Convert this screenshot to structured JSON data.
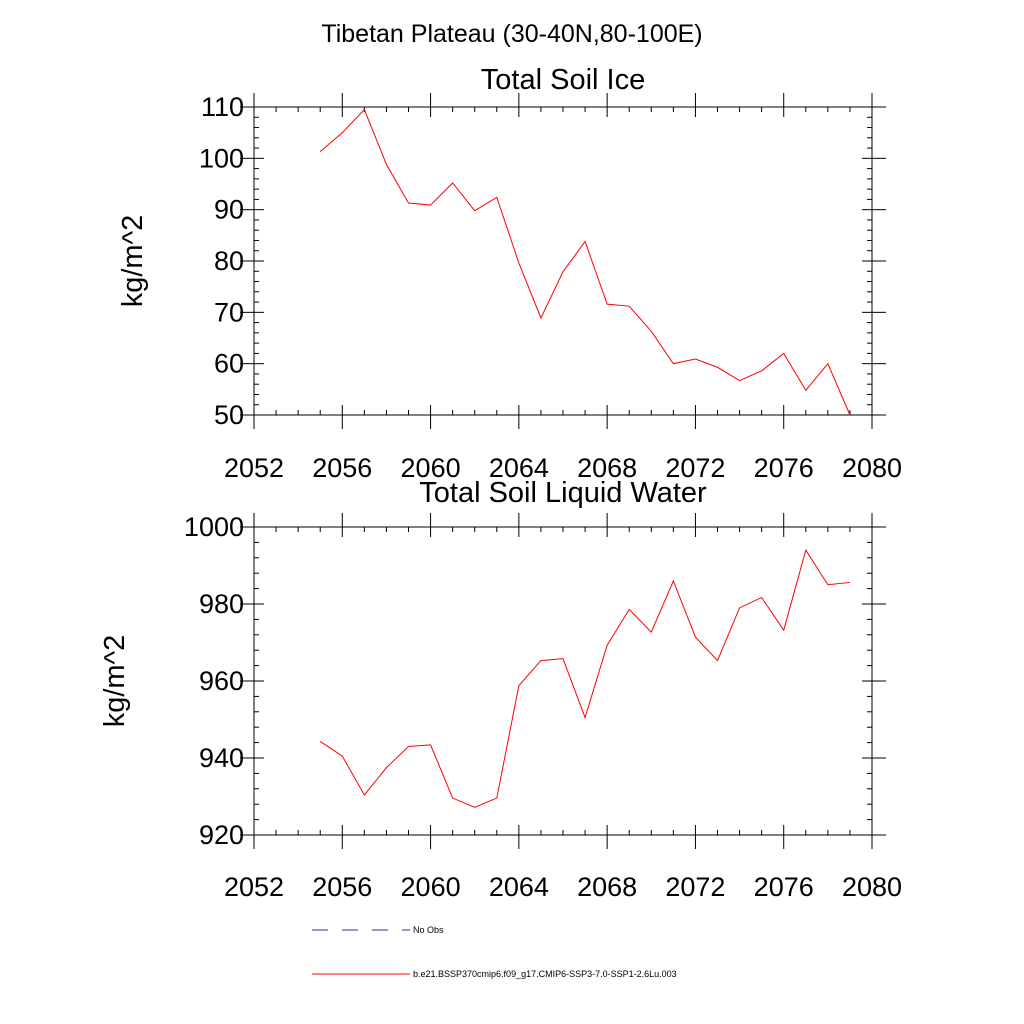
{
  "suptitle": "Tibetan Plateau (30-40N,80-100E)",
  "colors": {
    "series": "#ff0000",
    "no_obs": "#2b2bb0",
    "axis": "#000000"
  },
  "legend": {
    "no_obs_label": "No Obs",
    "series_label": "b.e21.BSSP370cmip6.f09_g17.CMIP6-SSP3-7.0-SSP1-2.6Lu.003"
  },
  "chart_data": [
    {
      "type": "line",
      "title": "Total Soil Ice",
      "xlabel": "",
      "ylabel": "kg/m^2",
      "xlim": [
        2052,
        2080
      ],
      "ylim": [
        50,
        110
      ],
      "xticks": [
        2052,
        2056,
        2060,
        2064,
        2068,
        2072,
        2076,
        2080
      ],
      "yticks": [
        50,
        60,
        70,
        80,
        90,
        100,
        110
      ],
      "grid": false,
      "series": [
        {
          "x": [
            2055,
            2056,
            2057,
            2058,
            2059,
            2060,
            2061,
            2062,
            2063,
            2064,
            2065,
            2066,
            2067,
            2068,
            2069,
            2070,
            2071,
            2072,
            2073,
            2074,
            2075,
            2076,
            2077,
            2078,
            2079
          ],
          "values": [
            101.3,
            105.0,
            109.5,
            98.8,
            91.3,
            90.9,
            95.2,
            89.8,
            92.4,
            79.6,
            68.9,
            77.9,
            83.8,
            71.6,
            71.2,
            66.3,
            60.0,
            60.9,
            59.3,
            56.7,
            58.6,
            62.0,
            54.8,
            60.0,
            50.0
          ]
        }
      ]
    },
    {
      "type": "line",
      "title": "Total Soil Liquid Water",
      "xlabel": "",
      "ylabel": "kg/m^2",
      "xlim": [
        2052,
        2080
      ],
      "ylim": [
        920,
        1000
      ],
      "xticks": [
        2052,
        2056,
        2060,
        2064,
        2068,
        2072,
        2076,
        2080
      ],
      "yticks": [
        920,
        940,
        960,
        980,
        1000
      ],
      "grid": false,
      "series": [
        {
          "x": [
            2055,
            2056,
            2057,
            2058,
            2059,
            2060,
            2061,
            2062,
            2063,
            2064,
            2065,
            2066,
            2067,
            2068,
            2069,
            2070,
            2071,
            2072,
            2073,
            2074,
            2075,
            2076,
            2077,
            2078,
            2079
          ],
          "values": [
            944.3,
            940.5,
            930.4,
            937.5,
            943.0,
            943.4,
            929.6,
            927.2,
            929.6,
            958.8,
            965.3,
            965.8,
            950.5,
            969.3,
            978.6,
            972.7,
            986.0,
            971.4,
            965.3,
            979.0,
            981.7,
            973.2,
            994.0,
            985.0,
            985.6
          ]
        }
      ]
    }
  ]
}
